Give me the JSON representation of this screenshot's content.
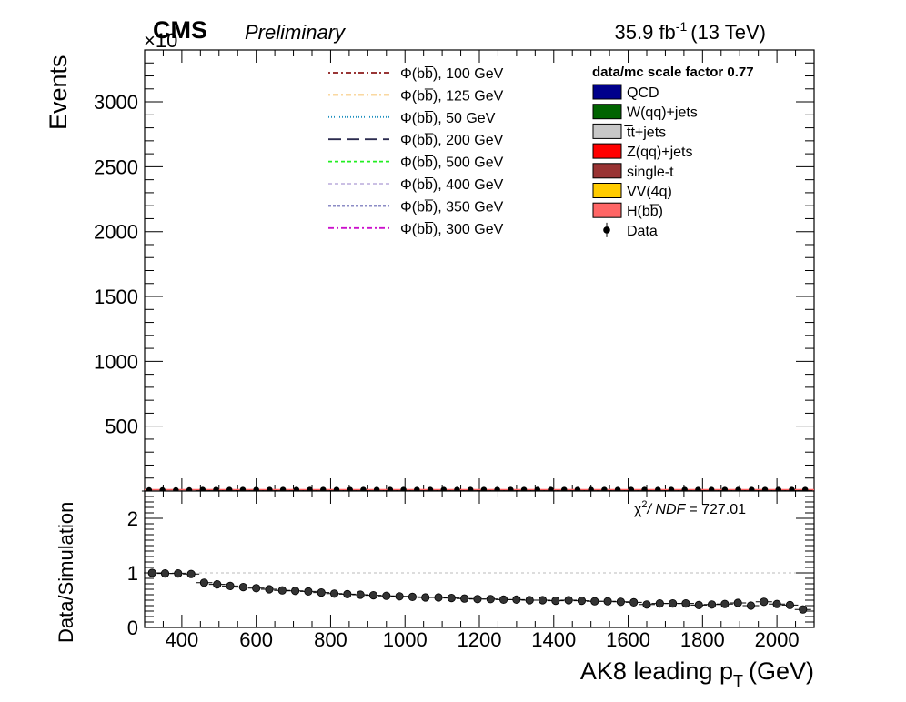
{
  "header": {
    "experiment": "CMS",
    "status": "Preliminary",
    "lumi": "35.9 fb",
    "lumi_exp": "-1",
    "energy": "(13 TeV)",
    "y_multiplier": "×10"
  },
  "legend": {
    "signals": [
      {
        "label": "Φ(bb̅), 100 GeV",
        "color": "#8b1a1a",
        "dash": "2,3,6,3"
      },
      {
        "label": "Φ(bb̅), 125 GeV",
        "color": "#f5b041",
        "dash": "2,3,6,3"
      },
      {
        "label": "Φ(bb̅), 50 GeV",
        "color": "#1f8fbf",
        "dash": "1,2"
      },
      {
        "label": "Φ(bb̅), 200 GeV",
        "color": "#2b2b4f",
        "dash": "14,6"
      },
      {
        "label": "Φ(bb̅), 500 GeV",
        "color": "#22ee22",
        "dash": "4,3"
      },
      {
        "label": "Φ(bb̅), 400 GeV",
        "color": "#c4b7e0",
        "dash": "4,3"
      },
      {
        "label": "Φ(bb̅), 350 GeV",
        "color": "#1a1a8c",
        "dash": "3,2"
      },
      {
        "label": "Φ(bb̅), 300 GeV",
        "color": "#cc11cc",
        "dash": "6,3,2,3"
      }
    ],
    "scale_title": "data/mc scale factor 0.77",
    "backgrounds": [
      {
        "label": "QCD",
        "color": "#00008b"
      },
      {
        "label": "W(qq)+jets",
        "color": "#006400"
      },
      {
        "label": "t̅t+jets",
        "color": "#c8c8c8"
      },
      {
        "label": "Z(qq)+jets",
        "color": "#ff0000"
      },
      {
        "label": "single-t",
        "color": "#993333"
      },
      {
        "label": "VV(4q)",
        "color": "#ffcc00"
      },
      {
        "label": "H(bb̅)",
        "color": "#ff6666"
      }
    ],
    "data_label": "Data"
  },
  "ratio_text": {
    "chi2": "χ",
    "chi2_exp": "2",
    "ndf": "/ NDF",
    "value": "= 727.01"
  },
  "chart_data": [
    {
      "type": "bar",
      "title": "",
      "xlabel": "AK8 leading p",
      "xlabel_sub": "T",
      "xlabel_unit": "(GeV)",
      "ylabel": "Events",
      "xlim": [
        300,
        2100
      ],
      "ylim": [
        0,
        3400
      ],
      "yticks": [
        500,
        1000,
        1500,
        2000,
        2500,
        3000
      ],
      "grid": false,
      "data_points": {
        "x": [
          312,
          348,
          384,
          420,
          456,
          492,
          528,
          564,
          600,
          636,
          672,
          708,
          744,
          780,
          816,
          852,
          888,
          924,
          960,
          996,
          1032,
          1068,
          1104,
          1140,
          1176,
          1212,
          1248,
          1284,
          1320,
          1356,
          1392,
          1428,
          1464,
          1500,
          1536,
          1572,
          1608,
          1644,
          1680,
          1716,
          1752,
          1788,
          1824,
          1860,
          1896,
          1932,
          1968,
          2004,
          2040,
          2076
        ],
        "y": [
          0,
          0,
          0,
          0,
          3,
          3,
          3,
          3,
          3,
          3,
          3,
          3,
          3,
          3,
          3,
          3,
          3,
          3,
          3,
          3,
          3,
          3,
          3,
          3,
          3,
          3,
          3,
          3,
          3,
          3,
          3,
          3,
          3,
          3,
          3,
          3,
          3,
          3,
          3,
          3,
          3,
          3,
          3,
          3,
          3,
          3,
          3,
          3,
          3,
          3
        ]
      }
    },
    {
      "type": "scatter",
      "title": "",
      "xlabel": "AK8 leading p",
      "ylabel": "Data/Simulation",
      "xlim": [
        300,
        2100
      ],
      "ylim": [
        0,
        2.5
      ],
      "xticks": [
        400,
        600,
        800,
        1000,
        1200,
        1400,
        1600,
        1800,
        2000
      ],
      "yticks": [
        0,
        1,
        2
      ],
      "reference_line": 1,
      "x": [
        320,
        355,
        390,
        425,
        460,
        495,
        530,
        565,
        600,
        635,
        670,
        705,
        740,
        775,
        810,
        845,
        880,
        915,
        950,
        985,
        1020,
        1055,
        1090,
        1125,
        1160,
        1195,
        1230,
        1265,
        1300,
        1335,
        1370,
        1405,
        1440,
        1475,
        1510,
        1545,
        1580,
        1615,
        1650,
        1685,
        1720,
        1755,
        1790,
        1825,
        1860,
        1895,
        1930,
        1965,
        2000,
        2035,
        2070
      ],
      "y": [
        1.0,
        0.99,
        0.99,
        0.98,
        0.82,
        0.79,
        0.76,
        0.74,
        0.72,
        0.7,
        0.68,
        0.67,
        0.66,
        0.64,
        0.62,
        0.61,
        0.6,
        0.59,
        0.58,
        0.57,
        0.56,
        0.55,
        0.55,
        0.54,
        0.53,
        0.52,
        0.52,
        0.51,
        0.51,
        0.5,
        0.5,
        0.49,
        0.5,
        0.49,
        0.48,
        0.48,
        0.47,
        0.46,
        0.42,
        0.44,
        0.44,
        0.44,
        0.41,
        0.42,
        0.43,
        0.45,
        0.4,
        0.47,
        0.43,
        0.41,
        0.33
      ]
    }
  ]
}
